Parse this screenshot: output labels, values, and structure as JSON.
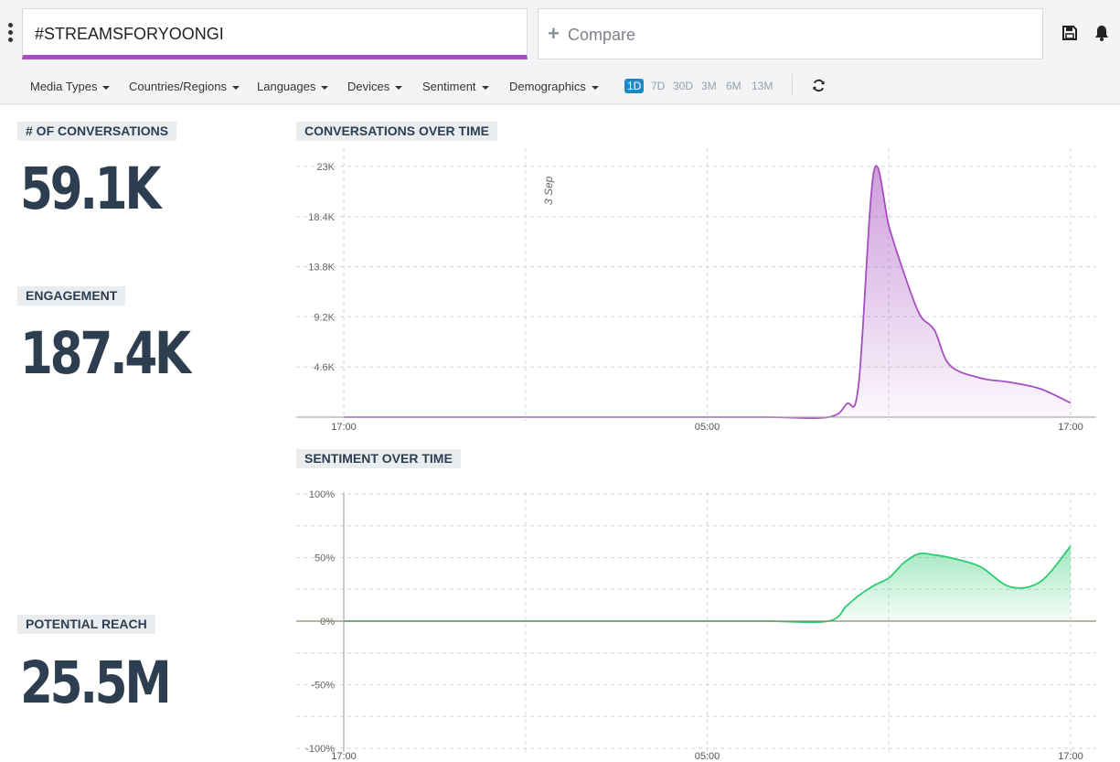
{
  "search": {
    "query": "#STREAMSFORYOONGI"
  },
  "compare": {
    "label": "Compare"
  },
  "filters": [
    "Media Types",
    "Countries/Regions",
    "Languages",
    "Devices",
    "Sentiment",
    "Demographics"
  ],
  "time_ranges": [
    "1D",
    "7D",
    "30D",
    "3M",
    "6M",
    "13M"
  ],
  "selected_range": "1D",
  "metrics": {
    "conversations": {
      "label": "# OF CONVERSATIONS",
      "value": "59.1K"
    },
    "engagement": {
      "label": "ENGAGEMENT",
      "value": "187.4K"
    },
    "reach": {
      "label": "POTENTIAL REACH",
      "value": "25.5M"
    }
  },
  "colors": {
    "accent": "#a64fc0",
    "active_range": "#1a8bc6",
    "conversations": "#a64fc0",
    "sentiment": "#2ecc71"
  },
  "chart_data": [
    {
      "type": "area",
      "title": "CONVERSATIONS OVER TIME",
      "x_ticks": [
        "17:00",
        "05:00",
        "17:00"
      ],
      "y_ticks": [
        "4.6K",
        "9.2K",
        "13.8K",
        "18.4K",
        "23K"
      ],
      "annotation": "3 Sep",
      "x": [
        0,
        2,
        4,
        6,
        8,
        10,
        12,
        14,
        16,
        16.6,
        17,
        17.5,
        18,
        18.4,
        19,
        19.5,
        20,
        21,
        22,
        23,
        24
      ],
      "values": [
        0,
        0,
        0,
        0,
        0,
        0,
        0,
        0,
        0,
        1200,
        3000,
        22500,
        17500,
        14000,
        9500,
        8000,
        4800,
        3600,
        3200,
        2600,
        1300
      ],
      "ylim": [
        0,
        23000
      ],
      "grid": true
    },
    {
      "type": "area",
      "title": "SENTIMENT OVER TIME",
      "x_ticks": [
        "17:00",
        "05:00",
        "17:00"
      ],
      "y_ticks": [
        "100%",
        "50%",
        "0%",
        "-50%",
        "-100%"
      ],
      "x": [
        0,
        2,
        4,
        6,
        8,
        10,
        12,
        14,
        16,
        16.6,
        17,
        17.5,
        18,
        18.5,
        19,
        19.5,
        20,
        21,
        22,
        23,
        24
      ],
      "values": [
        0,
        0,
        0,
        0,
        0,
        0,
        0,
        0,
        0,
        12,
        20,
        28,
        34,
        46,
        53,
        52,
        50,
        43,
        27,
        31,
        59
      ],
      "ylim": [
        -100,
        100
      ],
      "grid": true
    }
  ]
}
